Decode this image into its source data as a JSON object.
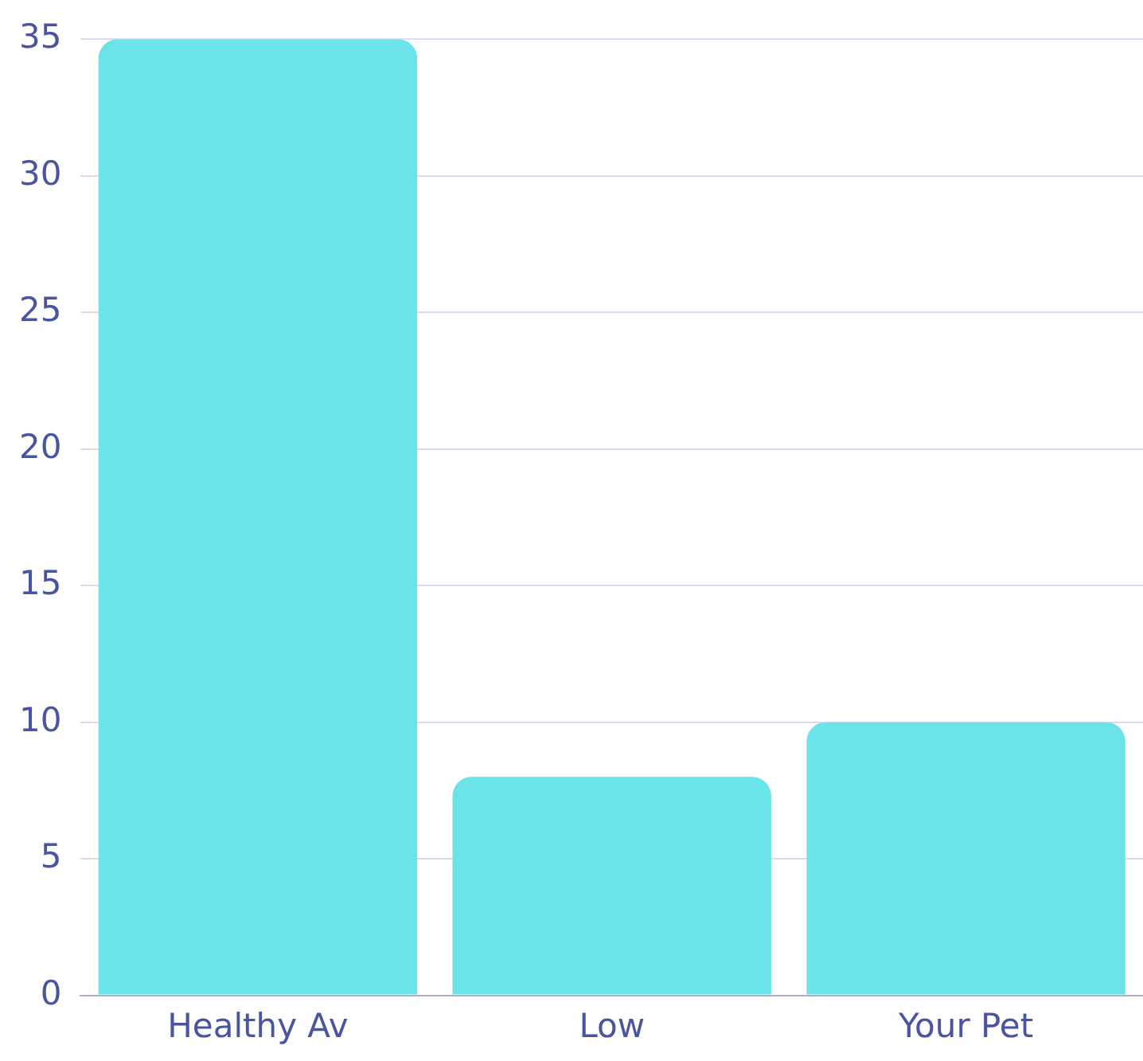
{
  "chart_data": {
    "type": "bar",
    "categories": [
      "Healthy Av",
      "Low",
      "Your Pet"
    ],
    "values": [
      35,
      8,
      10
    ],
    "color": "#6ae4e8",
    "ylim": [
      0,
      35
    ],
    "yticks": [
      0,
      5,
      10,
      15,
      20,
      25,
      30,
      35
    ],
    "grid": "y",
    "legend": false
  }
}
